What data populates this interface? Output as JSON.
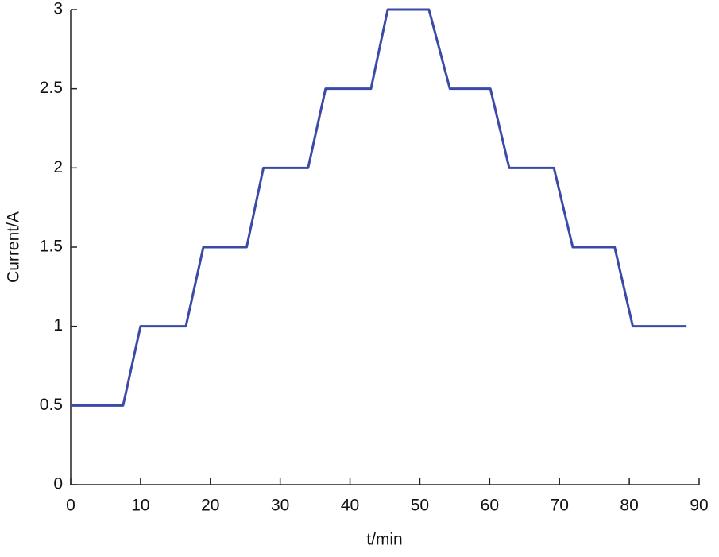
{
  "chart_data": {
    "type": "line",
    "x_label": "t/min",
    "y_label": "Current/A",
    "series": [
      {
        "name": "Current",
        "color": "#3a4aa6",
        "x": [
          0,
          7.5,
          10,
          16.5,
          19,
          25.2,
          27.6,
          34,
          36.5,
          43,
          45.4,
          51.3,
          54.3,
          60.1,
          62.8,
          69.2,
          71.9,
          77.9,
          80.5,
          88.2
        ],
        "values": [
          0.5,
          0.5,
          1,
          1,
          1.5,
          1.5,
          2,
          2,
          2.5,
          2.5,
          3,
          3,
          2.5,
          2.5,
          2,
          2,
          1.5,
          1.5,
          1,
          1
        ]
      }
    ],
    "xlim": [
      0,
      90
    ],
    "xticks": [
      0,
      10,
      20,
      30,
      40,
      50,
      60,
      70,
      80,
      90
    ],
    "ylim": [
      0,
      3
    ],
    "yticks": [
      0,
      0.5,
      1,
      1.5,
      2,
      2.5,
      3
    ]
  }
}
